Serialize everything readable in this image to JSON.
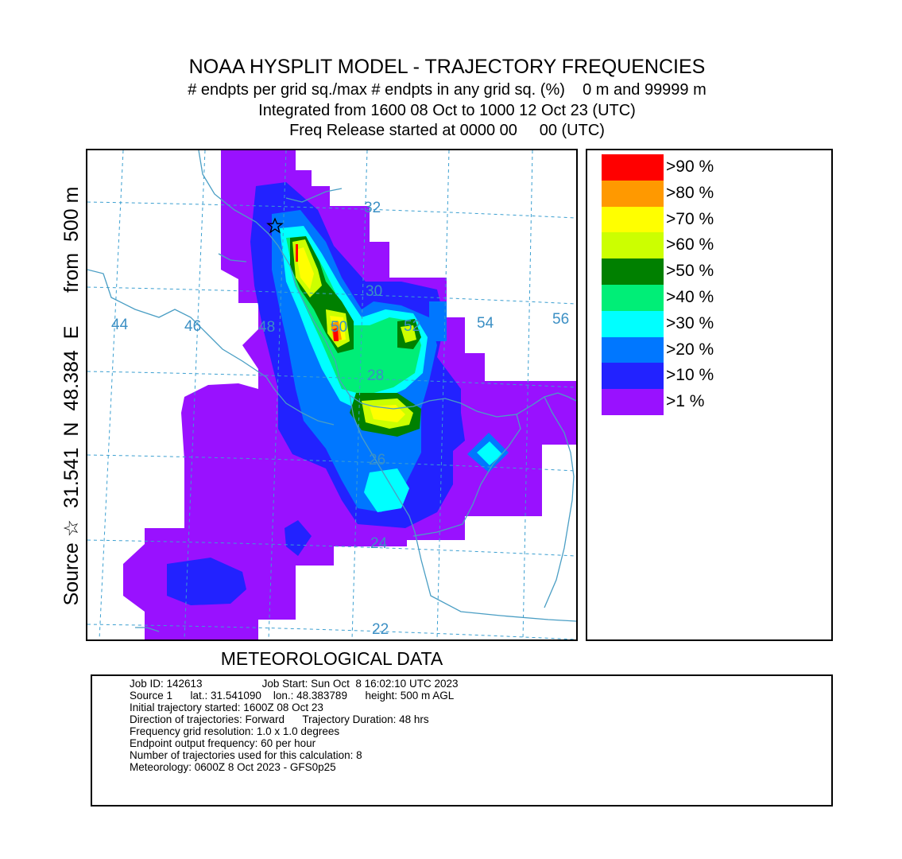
{
  "title": {
    "line1": "NOAA HYSPLIT MODEL - TRAJECTORY FREQUENCIES",
    "line2": "# endpts per grid sq./max # endpts in any grid sq. (%)    0 m and 99999 m",
    "line3": "Integrated from 1600 08 Oct to 1000 12 Oct 23 (UTC)",
    "line4": "Freq Release started at 0000 00     00 (UTC)"
  },
  "side_label": "Source ☆  31.541  N  48.384  E      from  500 m",
  "map": {
    "longitude_labels": [
      "44",
      "46",
      "48",
      "50",
      "52",
      "54",
      "56"
    ],
    "latitude_labels": [
      "32",
      "30",
      "28",
      "26",
      "24",
      "22"
    ],
    "source_marker_icon": "star-outline-icon"
  },
  "legend": [
    {
      "label": ">90 %",
      "color": "#ff0000"
    },
    {
      "label": ">80 %",
      "color": "#ff9900"
    },
    {
      "label": ">70 %",
      "color": "#ffff00"
    },
    {
      "label": ">60 %",
      "color": "#ccff00"
    },
    {
      "label": ">50 %",
      "color": "#008000"
    },
    {
      "label": ">40 %",
      "color": "#00ee77"
    },
    {
      "label": ">30 %",
      "color": "#00ffff"
    },
    {
      "label": ">20 %",
      "color": "#0077ff"
    },
    {
      "label": ">10 %",
      "color": "#2222ff"
    },
    {
      "label": ">1 %",
      "color": "#9911ff"
    }
  ],
  "met_label": "METEOROLOGICAL DATA",
  "info": [
    "Job ID: 142613                    Job Start: Sun Oct  8 16:02:10 UTC 2023",
    "Source 1      lat.: 31.541090    lon.: 48.383789      height: 500 m AGL",
    "Initial trajectory started: 1600Z 08 Oct 23",
    "Direction of trajectories: Forward      Trajectory Duration: 48 hrs",
    "Frequency grid resolution: 1.0 x 1.0 degrees",
    "Endpoint output frequency: 60 per hour",
    "Number of trajectories used for this calculation: 8",
    "Meteorology: 0600Z 8 Oct 2023 - GFS0p25"
  ],
  "colors": {
    "graticule": "#3b9fd0",
    "coast": "#4a9ec4",
    "label": "#3b8fc4"
  }
}
